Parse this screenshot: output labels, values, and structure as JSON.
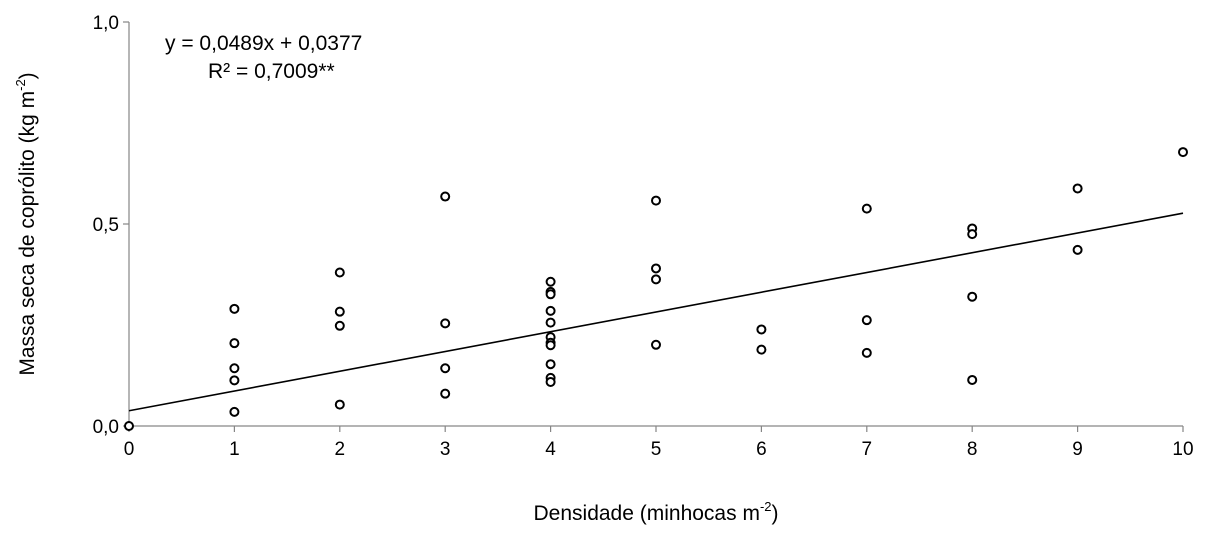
{
  "chart_data": {
    "type": "scatter",
    "xlabel": {
      "main": "Densidade (minhocas m",
      "sup": "-2",
      "tail": ")"
    },
    "ylabel": {
      "main": "Massa seca de coprólito (kg m",
      "sup": "-2",
      "tail": ")"
    },
    "xlim": [
      0,
      10
    ],
    "ylim": [
      0,
      1
    ],
    "x_ticks": [
      "0",
      "1",
      "2",
      "3",
      "4",
      "5",
      "6",
      "7",
      "8",
      "9",
      "10"
    ],
    "y_ticks": [
      "0,0",
      "0,5",
      "1,0"
    ],
    "grid": false,
    "marker": "open-circle",
    "points": [
      {
        "x": 0,
        "y": 0.0
      },
      {
        "x": 1,
        "y": 0.29
      },
      {
        "x": 1,
        "y": 0.205
      },
      {
        "x": 1,
        "y": 0.143
      },
      {
        "x": 1,
        "y": 0.113
      },
      {
        "x": 1,
        "y": 0.035
      },
      {
        "x": 2,
        "y": 0.38
      },
      {
        "x": 2,
        "y": 0.283
      },
      {
        "x": 2,
        "y": 0.248
      },
      {
        "x": 2,
        "y": 0.053
      },
      {
        "x": 3,
        "y": 0.568
      },
      {
        "x": 3,
        "y": 0.254
      },
      {
        "x": 3,
        "y": 0.143
      },
      {
        "x": 3,
        "y": 0.08
      },
      {
        "x": 4,
        "y": 0.357
      },
      {
        "x": 4,
        "y": 0.332
      },
      {
        "x": 4,
        "y": 0.326
      },
      {
        "x": 4,
        "y": 0.285
      },
      {
        "x": 4,
        "y": 0.256
      },
      {
        "x": 4,
        "y": 0.22
      },
      {
        "x": 4,
        "y": 0.206
      },
      {
        "x": 4,
        "y": 0.2
      },
      {
        "x": 4,
        "y": 0.153
      },
      {
        "x": 4,
        "y": 0.119
      },
      {
        "x": 4,
        "y": 0.109
      },
      {
        "x": 5,
        "y": 0.558
      },
      {
        "x": 5,
        "y": 0.39
      },
      {
        "x": 5,
        "y": 0.363
      },
      {
        "x": 5,
        "y": 0.201
      },
      {
        "x": 6,
        "y": 0.239
      },
      {
        "x": 6,
        "y": 0.189
      },
      {
        "x": 7,
        "y": 0.538
      },
      {
        "x": 7,
        "y": 0.262
      },
      {
        "x": 7,
        "y": 0.181
      },
      {
        "x": 8,
        "y": 0.489
      },
      {
        "x": 8,
        "y": 0.475
      },
      {
        "x": 8,
        "y": 0.32
      },
      {
        "x": 8,
        "y": 0.114
      },
      {
        "x": 9,
        "y": 0.588
      },
      {
        "x": 9,
        "y": 0.436
      },
      {
        "x": 10,
        "y": 0.678
      }
    ],
    "trendline": {
      "slope": 0.0489,
      "intercept": 0.0377,
      "x_range": [
        0,
        10
      ]
    },
    "annotations": {
      "equation": "y = 0,0489x + 0,0377",
      "r2": "R² = 0,7009**"
    }
  }
}
